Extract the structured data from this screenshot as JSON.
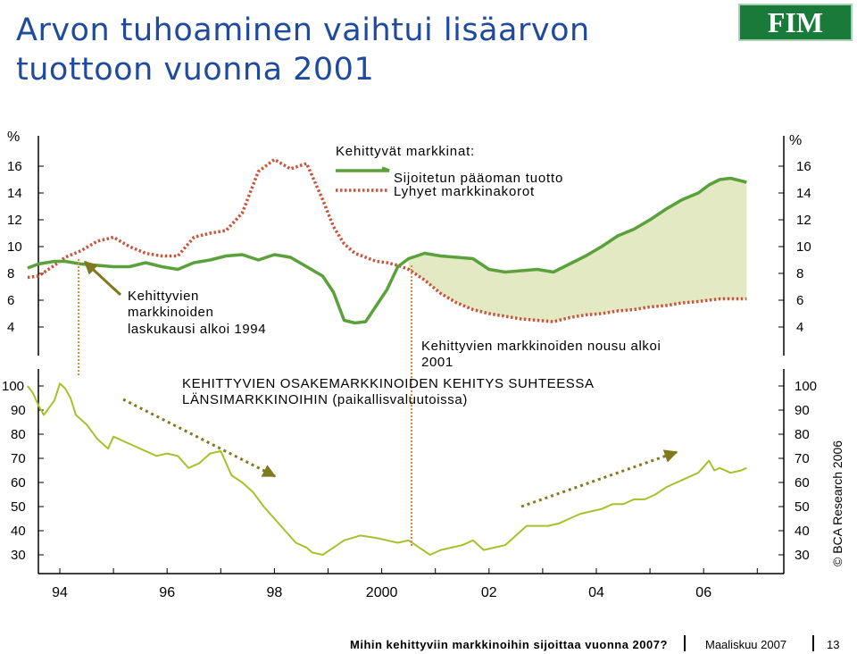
{
  "title": "Arvon tuhoaminen vaihtui lisäarvon tuottoon vuonna 2001",
  "logo": "FIM",
  "footer": {
    "question": "Mihin kehittyviin markkinoihin sijoittaa vuonna 2007?",
    "date": "Maaliskuu 2007",
    "page": "13"
  },
  "credit": "© BCA Research 2006",
  "colors": {
    "green": "#5aa13c",
    "red": "#c8553b",
    "lime": "#a9bf2c",
    "fill": "#e3e9c3",
    "arrow": "#7f7a1d",
    "title": "#1f4a9e"
  },
  "chart_data": [
    {
      "type": "line",
      "title": "Kehittyvät markkinat:",
      "y_unit": "%",
      "ylim": [
        3,
        17
      ],
      "yticks": [
        "4",
        "6",
        "8",
        "10",
        "12",
        "14",
        "16"
      ],
      "legend_placement": "top-center",
      "series": [
        {
          "name": "Sijoitetun pääoman tuotto",
          "color": "#5aa13c",
          "style": "solid",
          "x": [
            1993.4,
            1993.6,
            1993.9,
            1994.1,
            1994.4,
            1994.7,
            1995.0,
            1995.3,
            1995.6,
            1995.9,
            1996.2,
            1996.5,
            1996.8,
            1997.1,
            1997.4,
            1997.7,
            1998.0,
            1998.3,
            1998.6,
            1998.9,
            1999.1,
            1999.3,
            1999.5,
            1999.7,
            1999.9,
            2000.1,
            2000.3,
            2000.5,
            2000.8,
            2001.1,
            2001.4,
            2001.7,
            2002.0,
            2002.3,
            2002.6,
            2002.9,
            2003.2,
            2003.5,
            2003.8,
            2004.1,
            2004.4,
            2004.7,
            2005.0,
            2005.3,
            2005.6,
            2005.9,
            2006.1,
            2006.3,
            2006.5,
            2006.8
          ],
          "values": [
            8.4,
            8.7,
            8.9,
            8.9,
            8.7,
            8.6,
            8.5,
            8.5,
            8.8,
            8.5,
            8.3,
            8.8,
            9.0,
            9.3,
            9.4,
            9.0,
            9.4,
            9.2,
            8.5,
            7.8,
            6.6,
            4.5,
            4.3,
            4.4,
            5.6,
            6.8,
            8.5,
            9.1,
            9.5,
            9.3,
            9.2,
            9.1,
            8.3,
            8.1,
            8.2,
            8.3,
            8.1,
            8.7,
            9.3,
            10.0,
            10.8,
            11.3,
            12.0,
            12.8,
            13.5,
            14.0,
            14.6,
            15.0,
            15.1,
            14.8
          ]
        },
        {
          "name": "Lyhyet markkinakorot",
          "color": "#c8553b",
          "style": "dotted",
          "x": [
            1993.4,
            1993.6,
            1993.9,
            1994.1,
            1994.4,
            1994.7,
            1995.0,
            1995.3,
            1995.6,
            1995.9,
            1996.2,
            1996.5,
            1996.8,
            1997.1,
            1997.4,
            1997.7,
            1998.0,
            1998.3,
            1998.6,
            1998.9,
            1999.1,
            1999.3,
            1999.5,
            1999.7,
            1999.9,
            2000.1,
            2000.3,
            2000.5,
            2000.8,
            2001.1,
            2001.4,
            2001.7,
            2002.0,
            2002.3,
            2002.6,
            2002.9,
            2003.2,
            2003.5,
            2003.8,
            2004.1,
            2004.4,
            2004.7,
            2005.0,
            2005.3,
            2005.6,
            2005.9,
            2006.1,
            2006.3,
            2006.5,
            2006.8
          ],
          "values": [
            7.7,
            7.8,
            8.6,
            9.2,
            9.7,
            10.4,
            10.7,
            10.0,
            9.5,
            9.3,
            9.3,
            10.7,
            11.0,
            11.2,
            12.5,
            15.6,
            16.5,
            15.8,
            16.2,
            13.5,
            11.5,
            10.2,
            9.5,
            9.2,
            8.9,
            8.8,
            8.6,
            8.3,
            7.5,
            6.5,
            5.8,
            5.3,
            5.0,
            4.8,
            4.6,
            4.5,
            4.4,
            4.7,
            4.9,
            5.0,
            5.2,
            5.3,
            5.5,
            5.6,
            5.8,
            5.9,
            6.0,
            6.1,
            6.1,
            6.1
          ]
        }
      ],
      "annotations": [
        "Kehittyvien markkinoiden laskukausi alkoi 1994",
        "Kehittyvien markkinoiden nousu alkoi 2001"
      ]
    },
    {
      "type": "line",
      "title": "KEHITTYVIEN OSAKEMARKKINOIDEN KEHITYS SUHTEESSA LÄNSIMARKKINOIHIN (paikallisvaluutoissa)",
      "ylim": [
        25,
        105
      ],
      "yticks": [
        "30",
        "40",
        "50",
        "60",
        "70",
        "80",
        "90",
        "100"
      ],
      "xlabels": [
        "94",
        "96",
        "98",
        "2000",
        "02",
        "04",
        "06"
      ],
      "xlabel_values": [
        1994,
        1996,
        1998,
        2000,
        2002,
        2004,
        2006
      ],
      "series": [
        {
          "color": "#a9bf2c",
          "x": [
            1993.4,
            1993.5,
            1993.6,
            1993.7,
            1993.8,
            1993.9,
            1994.0,
            1994.1,
            1994.2,
            1994.3,
            1994.5,
            1994.7,
            1994.9,
            1995.0,
            1995.2,
            1995.4,
            1995.6,
            1995.8,
            1996.0,
            1996.2,
            1996.4,
            1996.6,
            1996.8,
            1997.0,
            1997.2,
            1997.4,
            1997.6,
            1997.8,
            1998.0,
            1998.2,
            1998.4,
            1998.6,
            1998.7,
            1998.9,
            1999.1,
            1999.3,
            1999.6,
            1999.9,
            2000.1,
            2000.3,
            2000.5,
            2000.7,
            2000.9,
            2001.1,
            2001.3,
            2001.5,
            2001.7,
            2001.9,
            2002.1,
            2002.3,
            2002.5,
            2002.7,
            2002.9,
            2003.1,
            2003.3,
            2003.5,
            2003.7,
            2003.9,
            2004.1,
            2004.3,
            2004.5,
            2004.7,
            2004.9,
            2005.1,
            2005.3,
            2005.5,
            2005.7,
            2005.9,
            2006.1,
            2006.2,
            2006.3,
            2006.5,
            2006.7,
            2006.8
          ],
          "values": [
            100,
            97,
            92,
            88,
            91,
            94,
            101,
            99,
            95,
            88,
            84,
            78,
            74,
            79,
            77,
            75,
            73,
            71,
            72,
            71,
            66,
            68,
            72,
            73,
            63,
            60,
            56,
            50,
            45,
            40,
            35,
            33,
            31,
            30,
            33,
            36,
            38,
            37,
            36,
            35,
            36,
            33,
            30,
            32,
            33,
            34,
            36,
            32,
            33,
            34,
            38,
            42,
            42,
            42,
            43,
            45,
            47,
            48,
            49,
            51,
            51,
            53,
            53,
            55,
            58,
            60,
            62,
            64,
            69,
            65,
            66,
            64,
            65,
            66
          ]
        }
      ],
      "annotations": [
        "trend arrow down 1995-1997",
        "trend arrow up 2002-2006"
      ]
    }
  ]
}
